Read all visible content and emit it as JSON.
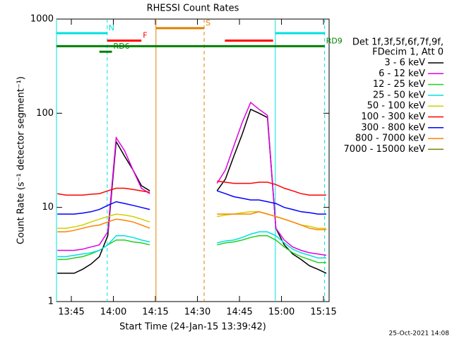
{
  "chart_data": {
    "type": "line",
    "title": "RHESSI Count Rates",
    "x_label": "Start Time (24-Jan-15 13:39:42)",
    "y_label": "Count Rate (s⁻¹ detector segment⁻¹)",
    "log_y": true,
    "xlim": [
      "13:39:42",
      "15:17:00"
    ],
    "xticks": [
      "13:45",
      "14:00",
      "14:15",
      "14:30",
      "14:45",
      "15:00",
      "15:15"
    ],
    "ylim": [
      1,
      1000
    ],
    "yticks": [
      1,
      10,
      100,
      1000
    ],
    "legend_header": [
      "Det 1f,3f,5f,6f,7f,9f,",
      "FDecim 1, Att 0"
    ],
    "footer": "25-Oct-2021 14:08",
    "x": [
      "13:40",
      "13:43",
      "13:46",
      "13:49",
      "13:52",
      "13:55",
      "13:58",
      "14:01",
      "14:04",
      "14:07",
      "14:10",
      "14:13",
      "14:16",
      "14:19",
      "14:22",
      "14:25",
      "14:28",
      "14:31",
      "14:34",
      "14:37",
      "14:40",
      "14:43",
      "14:46",
      "14:49",
      "14:52",
      "14:55",
      "14:58",
      "15:01",
      "15:04",
      "15:07",
      "15:10",
      "15:13",
      "15:16"
    ],
    "series": [
      {
        "name": "3 - 6 keV",
        "color": "#000000",
        "values": [
          2,
          2,
          2,
          2.2,
          2.5,
          3,
          5,
          50,
          35,
          25,
          17,
          15,
          null,
          null,
          null,
          null,
          null,
          null,
          null,
          15,
          20,
          35,
          60,
          110,
          100,
          90,
          6,
          4,
          3.2,
          2.8,
          2.4,
          2.2,
          2
        ]
      },
      {
        "name": "6 - 12 keV",
        "color": "#e000e0",
        "values": [
          3.5,
          3.5,
          3.5,
          3.6,
          3.8,
          4,
          5.5,
          55,
          40,
          25,
          16,
          14,
          null,
          null,
          null,
          null,
          null,
          null,
          null,
          18,
          25,
          45,
          80,
          130,
          110,
          95,
          6,
          4.5,
          3.8,
          3.5,
          3.3,
          3.2,
          3.1
        ]
      },
      {
        "name": "12 - 25 keV",
        "color": "#20d020",
        "values": [
          2.8,
          2.8,
          2.9,
          3,
          3.2,
          3.5,
          4,
          4.5,
          4.5,
          4.3,
          4.2,
          4,
          null,
          null,
          null,
          null,
          null,
          null,
          null,
          4,
          4.2,
          4.3,
          4.5,
          4.8,
          5,
          5,
          4.5,
          3.8,
          3.3,
          3,
          2.8,
          2.6,
          2.6
        ]
      },
      {
        "name": "25 - 50 keV",
        "color": "#00e0e0",
        "values": [
          3,
          3,
          3.1,
          3.2,
          3.3,
          3.5,
          4,
          5,
          5,
          4.8,
          4.5,
          4.3,
          null,
          null,
          null,
          null,
          null,
          null,
          null,
          4.2,
          4.4,
          4.5,
          4.8,
          5.2,
          5.5,
          5.5,
          5,
          4.2,
          3.6,
          3.3,
          3.1,
          2.9,
          2.9
        ]
      },
      {
        "name": "50 - 100 keV",
        "color": "#d0d000",
        "values": [
          6,
          6,
          6.2,
          6.5,
          7,
          7.5,
          8,
          8.5,
          8.3,
          8,
          7.5,
          7,
          null,
          null,
          null,
          null,
          null,
          null,
          null,
          8,
          8.3,
          8.5,
          8.8,
          9,
          9,
          8.5,
          8,
          7.5,
          7,
          6.5,
          6.3,
          6,
          6
        ]
      },
      {
        "name": "100 - 300 keV",
        "color": "#ff0000",
        "values": [
          14,
          13.5,
          13.5,
          13.5,
          13.8,
          14,
          15,
          16,
          16,
          15.5,
          15,
          14.5,
          null,
          null,
          null,
          null,
          null,
          null,
          null,
          19,
          18.5,
          18,
          18,
          18,
          18.5,
          18.5,
          17.5,
          16,
          15,
          14,
          13.5,
          13.5,
          13.5
        ]
      },
      {
        "name": "300 - 800 keV",
        "color": "#0000ff",
        "values": [
          8.5,
          8.5,
          8.5,
          8.7,
          9,
          9.5,
          10.5,
          11.5,
          11,
          10.5,
          10,
          9.5,
          null,
          null,
          null,
          null,
          null,
          null,
          null,
          15,
          14,
          13,
          12.5,
          12,
          12,
          11.5,
          11,
          10,
          9.5,
          9,
          8.8,
          8.5,
          8.5
        ]
      },
      {
        "name": "800 - 7000 keV",
        "color": "#ff8000",
        "values": [
          5.5,
          5.5,
          5.7,
          6,
          6.3,
          6.5,
          7,
          7.5,
          7.3,
          7,
          6.5,
          6,
          null,
          null,
          null,
          null,
          null,
          null,
          null,
          8.5,
          8.5,
          8.5,
          8.5,
          8.5,
          9,
          8.5,
          8,
          7.5,
          7,
          6.5,
          6,
          5.8,
          5.8
        ]
      },
      {
        "name": "7000 - 15000 keV",
        "color": "#808000",
        "values": [
          null,
          null,
          null,
          null,
          null,
          null,
          null,
          null,
          null,
          null,
          null,
          null,
          null,
          null,
          null,
          null,
          null,
          null,
          null,
          null,
          null,
          null,
          null,
          null,
          null,
          null,
          null,
          null,
          null,
          null,
          null,
          null,
          null
        ]
      }
    ],
    "markers": [
      {
        "time": "13:39:42",
        "color": "#00e0e0",
        "dashed": false
      },
      {
        "time": "13:57:48",
        "color": "#00e0e0",
        "dashed": true
      },
      {
        "time": "14:15:12",
        "color": "#e08000",
        "dashed": false
      },
      {
        "time": "14:32:24",
        "color": "#e08000",
        "dashed": true
      },
      {
        "time": "14:57:48",
        "color": "#00e0e0",
        "dashed": false
      },
      {
        "time": "15:15:24",
        "color": "#00e0e0",
        "dashed": true
      }
    ],
    "intervals": [
      {
        "label": "N",
        "color": "#00e0e0",
        "level": 708,
        "spans": [
          [
            "13:39:42",
            "13:57:48"
          ],
          [
            "14:57:48",
            "15:15:24"
          ]
        ]
      },
      {
        "label": "F",
        "color": "#ff0000",
        "level": 590,
        "spans": [
          [
            "13:57:48",
            "14:10:00"
          ],
          [
            "14:39:48",
            "14:57:00"
          ]
        ]
      },
      {
        "label": "S",
        "color": "#e08000",
        "level": 800,
        "spans": [
          [
            "14:15:12",
            "14:32:24"
          ]
        ]
      },
      {
        "label": "RD9",
        "color": "#008000",
        "level": 515,
        "spans": [
          [
            "13:39:42",
            "15:15:24"
          ]
        ]
      },
      {
        "label": "RD6",
        "color": "#008000",
        "level": 450,
        "spans": [
          [
            "13:55:00",
            "13:59:30"
          ]
        ]
      }
    ]
  }
}
